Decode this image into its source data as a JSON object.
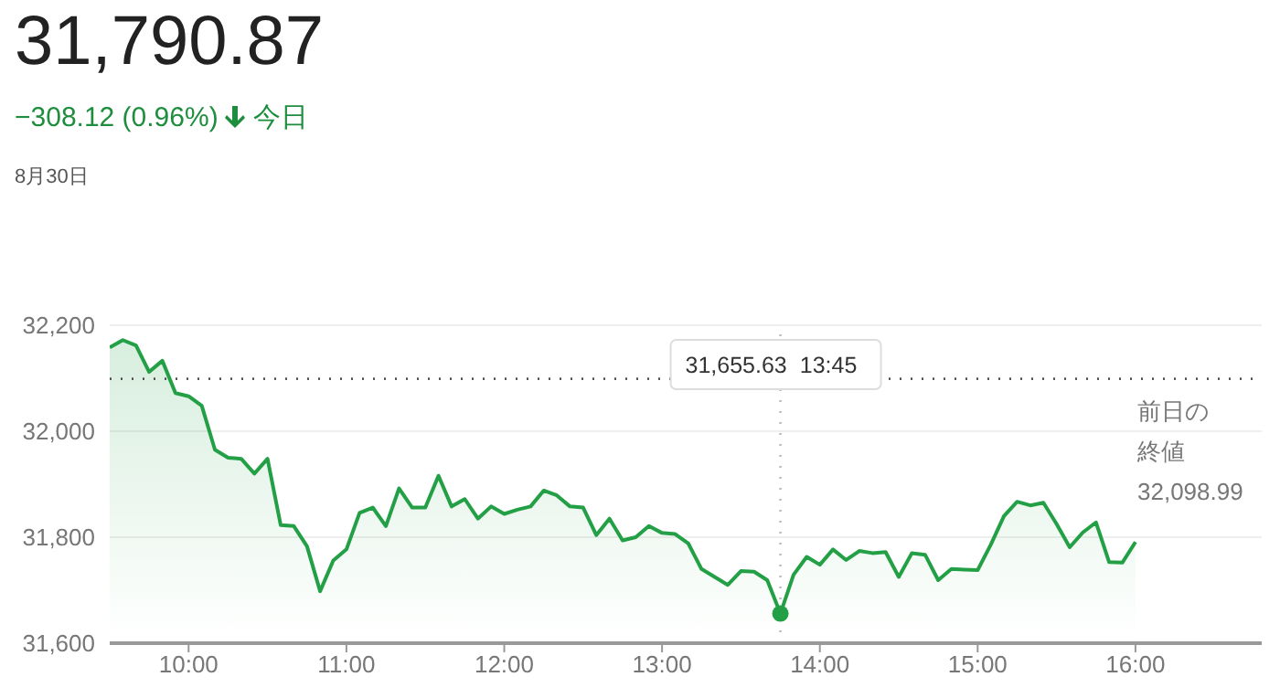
{
  "chart_data": {
    "type": "area",
    "title": "31,790.87",
    "subtitle": "−308.12 (0.96%)",
    "annotations": [
      "今日",
      "8月30日",
      "31,655.63 13:45"
    ],
    "x": [
      9.5,
      9.5833,
      9.6667,
      9.75,
      9.8333,
      9.9167,
      10,
      10.0833,
      10.1667,
      10.25,
      10.3333,
      10.4167,
      10.5,
      10.5833,
      10.6667,
      10.75,
      10.8333,
      10.9167,
      11,
      11.0833,
      11.1667,
      11.25,
      11.3333,
      11.4167,
      11.5,
      11.5833,
      11.6667,
      11.75,
      11.8333,
      11.9167,
      12,
      12.0833,
      12.1667,
      12.25,
      12.3333,
      12.4167,
      12.5,
      12.5833,
      12.6667,
      12.75,
      12.8333,
      12.9167,
      13,
      13.0833,
      13.1667,
      13.25,
      13.3333,
      13.4167,
      13.5,
      13.5833,
      13.6667,
      13.75,
      13.8333,
      13.9167,
      14,
      14.0833,
      14.1667,
      14.25,
      14.3333,
      14.4167,
      14.5,
      14.5833,
      14.6667,
      14.75,
      14.8333,
      14.9167,
      15,
      15.0833,
      15.1667,
      15.25,
      15.3333,
      15.4167,
      15.5,
      15.5833,
      15.6667,
      15.75,
      15.8333,
      15.9167,
      16
    ],
    "series": [
      {
        "color": "#23a046",
        "values": [
          32158,
          32172,
          32162,
          32112,
          32133,
          32072,
          32066,
          32048,
          31965,
          31950,
          31948,
          31920,
          31948,
          31823,
          31821,
          31783,
          31698,
          31756,
          31777,
          31846,
          31856,
          31821,
          31892,
          31856,
          31856,
          31916,
          31858,
          31872,
          31835,
          31858,
          31844,
          31852,
          31858,
          31888,
          31879,
          31858,
          31856,
          31804,
          31835,
          31794,
          31800,
          31821,
          31808,
          31806,
          31788,
          31740,
          31725,
          31710,
          31736,
          31735,
          31719,
          31656,
          31729,
          31763,
          31748,
          31777,
          31757,
          31774,
          31770,
          31772,
          31725,
          31770,
          31767,
          31719,
          31740,
          31739,
          31738,
          31786,
          31840,
          31867,
          31860,
          31865,
          31825,
          31781,
          31809,
          31828,
          31753,
          31752,
          31791
        ]
      },
      {
        "type": "scatter",
        "color": "#23a046",
        "marker": "circle",
        "x": [
          13.75
        ],
        "values": [
          31656
        ]
      }
    ],
    "xlim": [
      9.5,
      16.8
    ],
    "xticks": [
      {
        "value": 10,
        "label": "10:00"
      },
      {
        "value": 11,
        "label": "11:00"
      },
      {
        "value": 12,
        "label": "12:00"
      },
      {
        "value": 13,
        "label": "13:00"
      },
      {
        "value": 14,
        "label": "14:00"
      },
      {
        "value": 15,
        "label": "15:00"
      },
      {
        "value": 16,
        "label": "16:00"
      }
    ],
    "ylim": [
      31600,
      32200
    ],
    "yticks": [
      {
        "value": 31600,
        "label": "31,600"
      },
      {
        "value": 31800,
        "label": "31,800"
      },
      {
        "value": 32000,
        "label": "32,000"
      },
      {
        "value": 32200,
        "label": "32,200"
      }
    ],
    "grid": "y",
    "marker": "none",
    "ref_lines": [
      {
        "axis": "y",
        "value": 32098.99,
        "label": "前日の終値\n32,098.99",
        "color": "#555555",
        "line_style": "dotted"
      },
      {
        "axis": "x",
        "value": 13.75,
        "color": "#bbbbbb",
        "line_style": "dotted"
      }
    ]
  }
}
